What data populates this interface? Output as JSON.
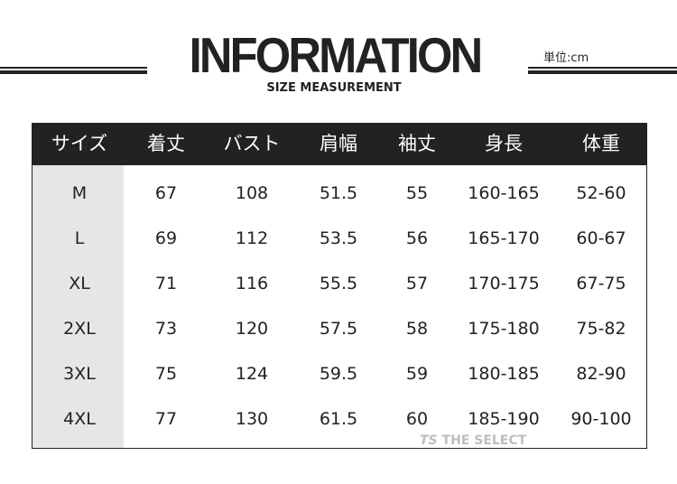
{
  "title": "INFORMATION",
  "subtitle": "SIZE MEASUREMENT",
  "unit": "単位:cm",
  "table": {
    "headers": [
      "サイズ",
      "着丈",
      "バスト",
      "肩幅",
      "袖丈",
      "身長",
      "体重"
    ],
    "rows": [
      [
        "M",
        "67",
        "108",
        "51.5",
        "55",
        "160-165",
        "52-60"
      ],
      [
        "L",
        "69",
        "112",
        "53.5",
        "56",
        "165-170",
        "60-67"
      ],
      [
        "XL",
        "71",
        "116",
        "55.5",
        "57",
        "170-175",
        "67-75"
      ],
      [
        "2XL",
        "73",
        "120",
        "57.5",
        "58",
        "175-180",
        "75-82"
      ],
      [
        "3XL",
        "75",
        "124",
        "59.5",
        "59",
        "180-185",
        "82-90"
      ],
      [
        "4XL",
        "77",
        "130",
        "61.5",
        "60",
        "185-190",
        "90-100"
      ]
    ]
  },
  "watermark": "THE SELECT",
  "colors": {
    "header_bg": "#222222",
    "size_column_bg": "#e6e6e6"
  }
}
